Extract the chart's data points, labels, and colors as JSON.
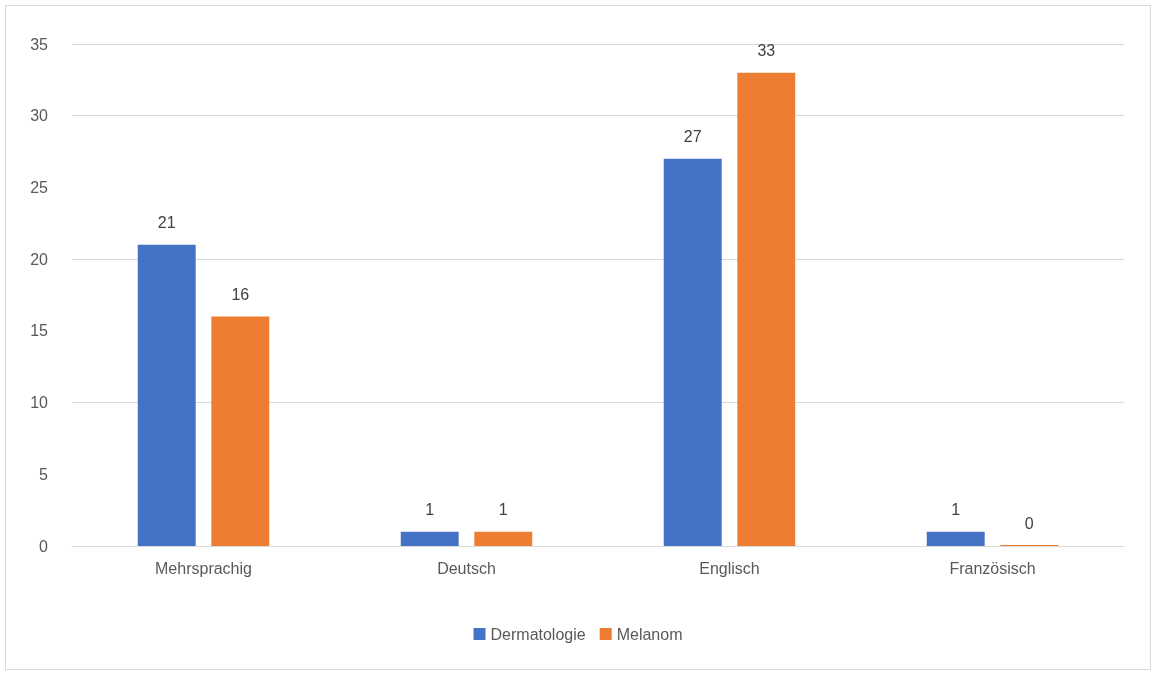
{
  "chart_data": {
    "type": "bar",
    "categories": [
      "Mehrsprachig",
      "Deutsch",
      "Englisch",
      "Französisch"
    ],
    "series": [
      {
        "name": "Dermatologie",
        "color": "#4472c4",
        "values": [
          21,
          1,
          27,
          1
        ]
      },
      {
        "name": "Melanom",
        "color": "#ed7d31",
        "values": [
          16,
          1,
          33,
          0
        ]
      }
    ],
    "ylim": [
      0,
      35
    ],
    "yticks": [
      0,
      5,
      10,
      15,
      20,
      25,
      30,
      35
    ],
    "grid": "y",
    "legend": "bottom",
    "data_labels": true
  }
}
